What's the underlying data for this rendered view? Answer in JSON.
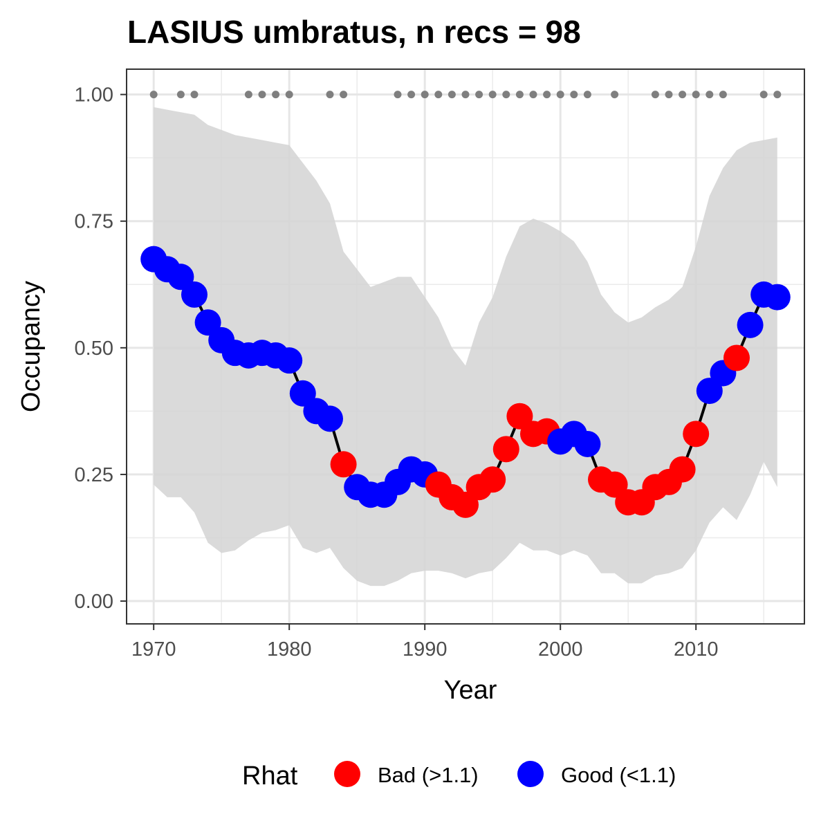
{
  "chart_data": {
    "type": "line",
    "title": "LASIUS umbratus, n recs = 98",
    "xlabel": "Year",
    "ylabel": "Occupancy",
    "xlim": [
      1968,
      2018
    ],
    "ylim": [
      -0.045,
      1.05
    ],
    "x_ticks": [
      1970,
      1980,
      1990,
      2000,
      2010
    ],
    "x_tick_labels": [
      "1970",
      "1980",
      "1990",
      "2000",
      "2010"
    ],
    "y_ticks": [
      0,
      0.25,
      0.5,
      0.75,
      1.0
    ],
    "y_tick_labels": [
      "0.00",
      "0.25",
      "0.50",
      "0.75",
      "1.00"
    ],
    "grid": true,
    "legend": {
      "title": "Rhat",
      "position": "bottom",
      "entries": [
        {
          "key": "bad",
          "label": "Bad (>1.1)",
          "color": "#ff0000"
        },
        {
          "key": "good",
          "label": "Good (<1.1)",
          "color": "#0000ff"
        }
      ]
    },
    "colors": {
      "bad": "#ff0000",
      "good": "#0000ff",
      "ribbon": "#d3d3d3",
      "line": "#000000",
      "record_dots": "#7f7f7f"
    },
    "series": [
      {
        "x": [
          1970,
          1971,
          1972,
          1973,
          1974,
          1975,
          1976,
          1977,
          1978,
          1979,
          1980,
          1981,
          1982,
          1983,
          1984,
          1985,
          1986,
          1987,
          1988,
          1989,
          1990,
          1991,
          1992,
          1993,
          1994,
          1995,
          1996,
          1997,
          1998,
          1999,
          2000,
          2001,
          2002,
          2003,
          2004,
          2005,
          2006,
          2007,
          2008,
          2009,
          2010,
          2011,
          2012,
          2013,
          2014,
          2015,
          2016
        ],
        "y": [
          0.675,
          0.655,
          0.64,
          0.605,
          0.55,
          0.515,
          0.49,
          0.485,
          0.49,
          0.485,
          0.475,
          0.41,
          0.375,
          0.36,
          0.27,
          0.225,
          0.21,
          0.21,
          0.235,
          0.26,
          0.25,
          0.23,
          0.205,
          0.19,
          0.225,
          0.24,
          0.3,
          0.365,
          0.33,
          0.335,
          0.315,
          0.33,
          0.31,
          0.24,
          0.23,
          0.195,
          0.195,
          0.225,
          0.235,
          0.26,
          0.33,
          0.415,
          0.45,
          0.48,
          0.545,
          0.605,
          0.6
        ],
        "rhat": [
          "good",
          "good",
          "good",
          "good",
          "good",
          "good",
          "good",
          "good",
          "good",
          "good",
          "good",
          "good",
          "good",
          "good",
          "bad",
          "good",
          "good",
          "good",
          "good",
          "good",
          "good",
          "bad",
          "bad",
          "bad",
          "bad",
          "bad",
          "bad",
          "bad",
          "bad",
          "bad",
          "good",
          "good",
          "good",
          "bad",
          "bad",
          "bad",
          "bad",
          "bad",
          "bad",
          "bad",
          "bad",
          "good",
          "good",
          "bad",
          "good",
          "good",
          "good"
        ],
        "lower": [
          0.23,
          0.205,
          0.205,
          0.175,
          0.115,
          0.095,
          0.1,
          0.12,
          0.135,
          0.14,
          0.15,
          0.105,
          0.095,
          0.105,
          0.065,
          0.04,
          0.03,
          0.03,
          0.04,
          0.055,
          0.06,
          0.06,
          0.055,
          0.045,
          0.055,
          0.06,
          0.085,
          0.115,
          0.1,
          0.1,
          0.09,
          0.1,
          0.09,
          0.055,
          0.055,
          0.035,
          0.035,
          0.05,
          0.055,
          0.065,
          0.1,
          0.155,
          0.185,
          0.16,
          0.21,
          0.275,
          0.225
        ],
        "upper": [
          0.975,
          0.97,
          0.965,
          0.96,
          0.94,
          0.93,
          0.92,
          0.915,
          0.91,
          0.905,
          0.9,
          0.865,
          0.83,
          0.785,
          0.69,
          0.655,
          0.62,
          0.63,
          0.64,
          0.64,
          0.6,
          0.56,
          0.5,
          0.465,
          0.55,
          0.6,
          0.68,
          0.74,
          0.755,
          0.745,
          0.73,
          0.71,
          0.67,
          0.605,
          0.57,
          0.55,
          0.56,
          0.58,
          0.595,
          0.62,
          0.7,
          0.8,
          0.855,
          0.89,
          0.905,
          0.91,
          0.915
        ]
      }
    ],
    "records": {
      "y": 1.0,
      "years": [
        1970,
        1972,
        1973,
        1977,
        1978,
        1979,
        1980,
        1983,
        1984,
        1988,
        1989,
        1990,
        1991,
        1992,
        1993,
        1994,
        1995,
        1996,
        1997,
        1998,
        1999,
        2000,
        2001,
        2002,
        2004,
        2007,
        2008,
        2009,
        2010,
        2011,
        2012,
        2015,
        2016
      ]
    }
  }
}
